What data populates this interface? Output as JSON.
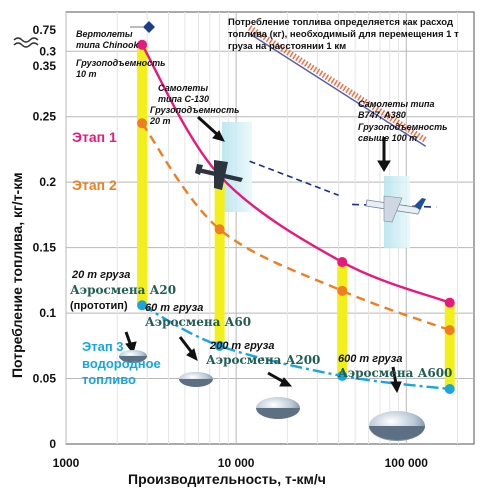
{
  "chart_data": {
    "type": "line",
    "xlabel": "Производительность, т-км/ч",
    "ylabel": "Потребление топлива, кг/т-км",
    "x_scale": "log",
    "xlim": [
      1000,
      250000
    ],
    "ylim": [
      0,
      0.33
    ],
    "x_ticks": [
      {
        "value": 1000,
        "label": "1000"
      },
      {
        "value": 10000,
        "label": "10 000"
      },
      {
        "value": 100000,
        "label": "100 000"
      }
    ],
    "y_ticks": [
      {
        "value": 0,
        "label": "0"
      },
      {
        "value": 0.05,
        "label": "0.05"
      },
      {
        "value": 0.1,
        "label": "0.1"
      },
      {
        "value": 0.15,
        "label": "0.15"
      },
      {
        "value": 0.2,
        "label": "0.2"
      },
      {
        "value": 0.25,
        "label": "0.25"
      },
      {
        "value": 0.3,
        "label": "0.3"
      }
    ],
    "broken_axis_ticks": [
      {
        "label": "0.35"
      },
      {
        "label": "0.75"
      }
    ],
    "series": [
      {
        "name": "Этап 1",
        "color": "#e6197f",
        "style": "solid",
        "points": [
          [
            2800,
            0.305
          ],
          [
            8000,
            0.205
          ],
          [
            42000,
            0.139
          ],
          [
            180000,
            0.108
          ]
        ]
      },
      {
        "name": "Этап 2",
        "color": "#f07d1e",
        "style": "dashed",
        "points": [
          [
            2800,
            0.245
          ],
          [
            8000,
            0.164
          ],
          [
            42000,
            0.117
          ],
          [
            180000,
            0.087
          ]
        ]
      },
      {
        "name": "Этап 3",
        "color": "#1aa5e0",
        "style": "dashdot",
        "points": [
          [
            2800,
            0.106
          ],
          [
            8000,
            0.075
          ],
          [
            42000,
            0.052
          ],
          [
            180000,
            0.042
          ]
        ]
      }
    ],
    "stage_labels": [
      "Этап 1",
      "Этап 2",
      "Этап 3",
      "водородное",
      "топливо"
    ],
    "aircraft": [
      {
        "name": "Аэросмена А20",
        "note": "20 т груза",
        "sub": "(прототип)",
        "x": 2800
      },
      {
        "name": "Аэросмена А60",
        "note": "60 т груза",
        "x": 8000
      },
      {
        "name": "Аэросмена А200",
        "note": "200 т груза",
        "x": 42000
      },
      {
        "name": "Аэросмена А600",
        "note": "600 т груза",
        "x": 180000
      }
    ],
    "reference_lines": [
      {
        "name": "Самолеты типа C-130",
        "color": "#1b2f86",
        "points": [
          [
            12000,
            0.216
          ],
          [
            40000,
            0.19
          ]
        ]
      },
      {
        "name": "Самолеты типа B747, A380",
        "color": "#5560b0",
        "points": [
          [
            12000,
            0.318
          ],
          [
            130000,
            0.232
          ]
        ]
      },
      {
        "name": "Самолеты типа B747, A380 (нижняя)",
        "color": "#1b2f86",
        "points": [
          [
            48000,
            0.184
          ],
          [
            170000,
            0.18
          ]
        ]
      }
    ],
    "annotations": {
      "top_note": [
        "Потребление топлива определяется как расход",
        "топлива (кг), необходимый для перемещения 1 т",
        "груза на расстоянии 1 км"
      ],
      "chinook": [
        "Вертолеты",
        "типа Chinook"
      ],
      "chinook_payload": [
        "Грузоподъемность",
        "10 т"
      ],
      "c130": [
        "Самолеты",
        "типа С-130",
        "Грузоподъемность",
        "20 т"
      ],
      "b747": [
        "Самолеты типа",
        "B747, A380",
        "Грузоподъемность",
        "свыше 100 т"
      ]
    }
  }
}
